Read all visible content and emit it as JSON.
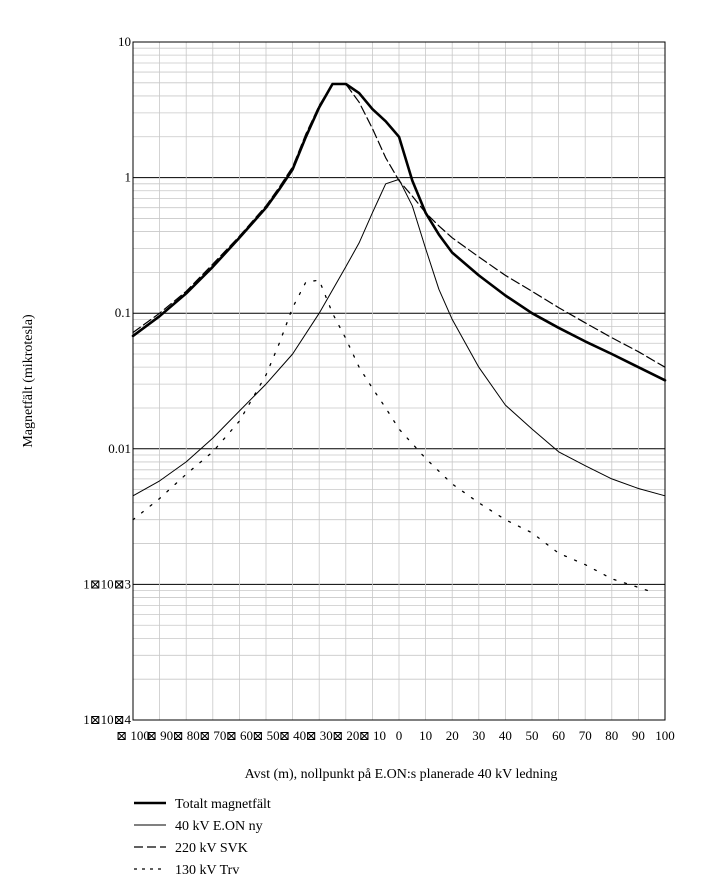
{
  "chart_data": {
    "type": "line",
    "xlabel": "Avst (m), nollpunkt på E.ON:s planerade 40 kV ledning",
    "ylabel": "Magnetfält (mikrotesla)",
    "yscale": "log",
    "xlim": [
      -100,
      100
    ],
    "ylim": [
      0.0001,
      10
    ],
    "grid": true,
    "legend_position": "bottom-left",
    "x_tick_labels": [
      "⊠ 100",
      "⊠ 90",
      "⊠ 80",
      "⊠ 70",
      "⊠ 60",
      "⊠ 50",
      "⊠ 40",
      "⊠ 30",
      "⊠ 20",
      "⊠ 10",
      "0",
      "10",
      "20",
      "30",
      "40",
      "50",
      "60",
      "70",
      "80",
      "90",
      "100"
    ],
    "y_tick_labels": [
      "10",
      "1",
      "0.1",
      "0.01",
      "1⊠10⊠3",
      "1⊠10⊠4"
    ],
    "series": [
      {
        "name": "Totalt magnetfält",
        "style": "thick",
        "x": [
          -100,
          -90,
          -80,
          -70,
          -60,
          -50,
          -45,
          -40,
          -35,
          -30,
          -25,
          -20,
          -15,
          -10,
          -5,
          0,
          5,
          10,
          15,
          20,
          30,
          40,
          50,
          60,
          70,
          80,
          90,
          100
        ],
        "y": [
          0.068,
          0.095,
          0.14,
          0.22,
          0.36,
          0.6,
          0.82,
          1.15,
          2.0,
          3.3,
          4.9,
          4.9,
          4.2,
          3.2,
          2.6,
          2.0,
          0.95,
          0.55,
          0.38,
          0.28,
          0.19,
          0.135,
          0.1,
          0.078,
          0.062,
          0.05,
          0.04,
          0.032
        ]
      },
      {
        "name": "40 kV E.ON ny",
        "style": "thin",
        "x": [
          -100,
          -90,
          -80,
          -70,
          -60,
          -50,
          -40,
          -30,
          -20,
          -15,
          -10,
          -5,
          0,
          5,
          10,
          15,
          20,
          30,
          40,
          50,
          60,
          70,
          80,
          90,
          100
        ],
        "y": [
          0.0045,
          0.0058,
          0.008,
          0.012,
          0.019,
          0.03,
          0.05,
          0.1,
          0.22,
          0.33,
          0.55,
          0.9,
          0.97,
          0.62,
          0.3,
          0.15,
          0.09,
          0.04,
          0.021,
          0.014,
          0.0095,
          0.0075,
          0.006,
          0.0051,
          0.0045
        ]
      },
      {
        "name": "220 kV SVK",
        "style": "dashed",
        "x": [
          -100,
          -90,
          -80,
          -70,
          -60,
          -50,
          -45,
          -40,
          -35,
          -30,
          -25,
          -20,
          -15,
          -10,
          -5,
          0,
          5,
          10,
          15,
          20,
          30,
          40,
          50,
          60,
          70,
          80,
          90,
          100
        ],
        "y": [
          0.072,
          0.1,
          0.145,
          0.23,
          0.37,
          0.62,
          0.85,
          1.2,
          2.1,
          3.4,
          4.9,
          4.9,
          3.6,
          2.3,
          1.4,
          0.95,
          0.73,
          0.55,
          0.44,
          0.36,
          0.26,
          0.19,
          0.145,
          0.11,
          0.085,
          0.066,
          0.052,
          0.04
        ]
      },
      {
        "name": "130 kV Trv",
        "style": "dotted",
        "x": [
          -100,
          -90,
          -80,
          -70,
          -60,
          -50,
          -45,
          -40,
          -35,
          -30,
          -25,
          -20,
          -15,
          -10,
          -5,
          0,
          10,
          20,
          30,
          40,
          50,
          60,
          70,
          80,
          90,
          95
        ],
        "y": [
          0.003,
          0.0043,
          0.0065,
          0.0095,
          0.016,
          0.035,
          0.06,
          0.11,
          0.17,
          0.175,
          0.1,
          0.065,
          0.04,
          0.028,
          0.02,
          0.014,
          0.0085,
          0.0055,
          0.004,
          0.003,
          0.0024,
          0.0017,
          0.0014,
          0.0011,
          0.00095,
          0.00088
        ]
      }
    ]
  }
}
